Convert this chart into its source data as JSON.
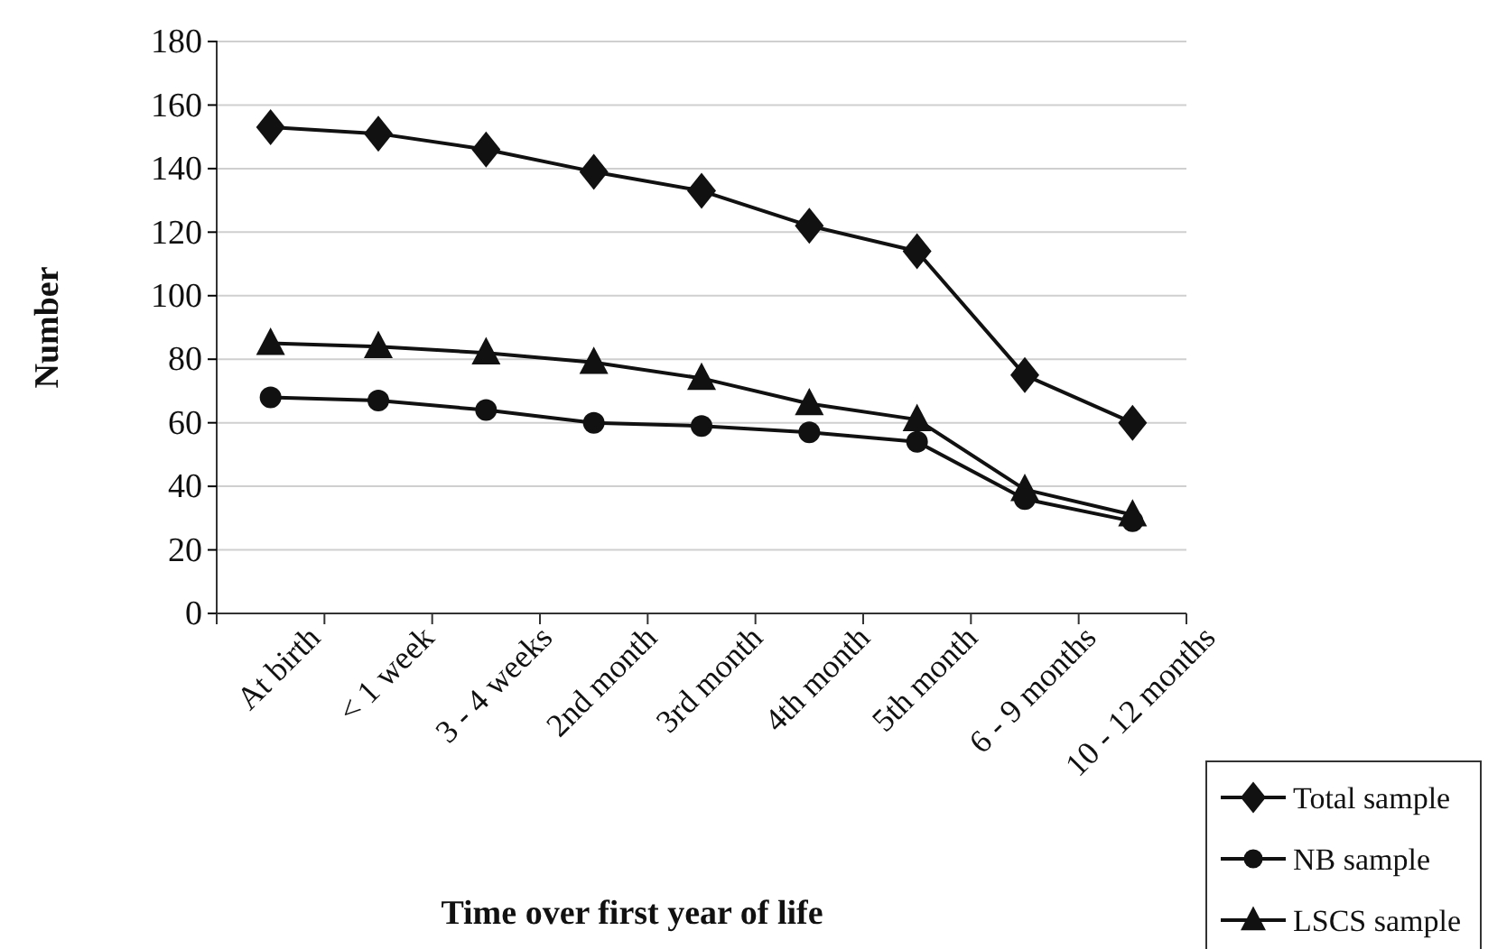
{
  "chart_data": {
    "type": "line",
    "xlabel": "Time over first year of life",
    "ylabel": "Number",
    "categories": [
      "At birth",
      "< 1 week",
      "3 - 4 weeks",
      "2nd month",
      "3rd month",
      "4th month",
      "5th month",
      "6 - 9 months",
      "10 - 12 months"
    ],
    "series": [
      {
        "name": "Total sample",
        "color": "#111111",
        "marker": "diamond",
        "values": [
          153,
          151,
          146,
          139,
          133,
          122,
          114,
          75,
          60
        ]
      },
      {
        "name": "NB sample",
        "color": "#111111",
        "marker": "circle",
        "values": [
          68,
          67,
          64,
          60,
          59,
          57,
          54,
          36,
          29
        ]
      },
      {
        "name": "LSCS sample",
        "color": "#111111",
        "marker": "triangle",
        "values": [
          85,
          84,
          82,
          79,
          74,
          66,
          61,
          39,
          31
        ]
      }
    ],
    "ylim": [
      0,
      180
    ],
    "yticks": [
      0,
      20,
      40,
      60,
      80,
      100,
      120,
      140,
      160,
      180
    ],
    "grid": "y",
    "legend": "bottom right",
    "line_style": "solid"
  }
}
